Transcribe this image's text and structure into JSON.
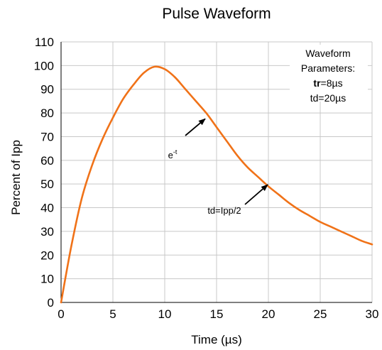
{
  "chart_data": {
    "type": "line",
    "title": "Pulse Waveform",
    "xlabel": "Time (µs)",
    "ylabel": "Percent of  Ipp",
    "xlim": [
      0,
      30
    ],
    "ylim": [
      0,
      110
    ],
    "xticks": [
      0,
      5,
      10,
      15,
      20,
      25,
      30
    ],
    "yticks": [
      0,
      10,
      20,
      30,
      40,
      50,
      60,
      70,
      80,
      90,
      100,
      110
    ],
    "grid": true,
    "series": [
      {
        "color": "#f07218",
        "x": [
          0,
          1,
          2,
          3,
          4,
          5,
          6,
          7,
          8,
          9,
          10,
          11,
          12,
          13,
          14,
          15,
          16,
          17,
          18,
          19,
          20,
          21,
          22,
          23,
          24,
          25,
          26,
          27,
          28,
          29,
          30
        ],
        "y": [
          0,
          24,
          44,
          58,
          69,
          78,
          86,
          92,
          97,
          99.5,
          98.5,
          95,
          90,
          85,
          80,
          74,
          68,
          62,
          57,
          53,
          49,
          45.5,
          42,
          39,
          36.5,
          34,
          32,
          30,
          28,
          26,
          24.5
        ]
      }
    ],
    "annotations": [
      {
        "label": "e",
        "superscript": "-t",
        "text_at": [
          10,
          65
        ],
        "arrow_to": [
          13.9,
          77.5
        ]
      },
      {
        "label": "td=Ipp/2",
        "text_at": [
          15.5,
          38
        ],
        "arrow_to": [
          20,
          50
        ]
      }
    ],
    "parameters_box": {
      "lines": [
        "Waveform",
        "Parameters:",
        "tr=8µs",
        "td=20µs"
      ],
      "bold_prefix": "tr"
    }
  }
}
